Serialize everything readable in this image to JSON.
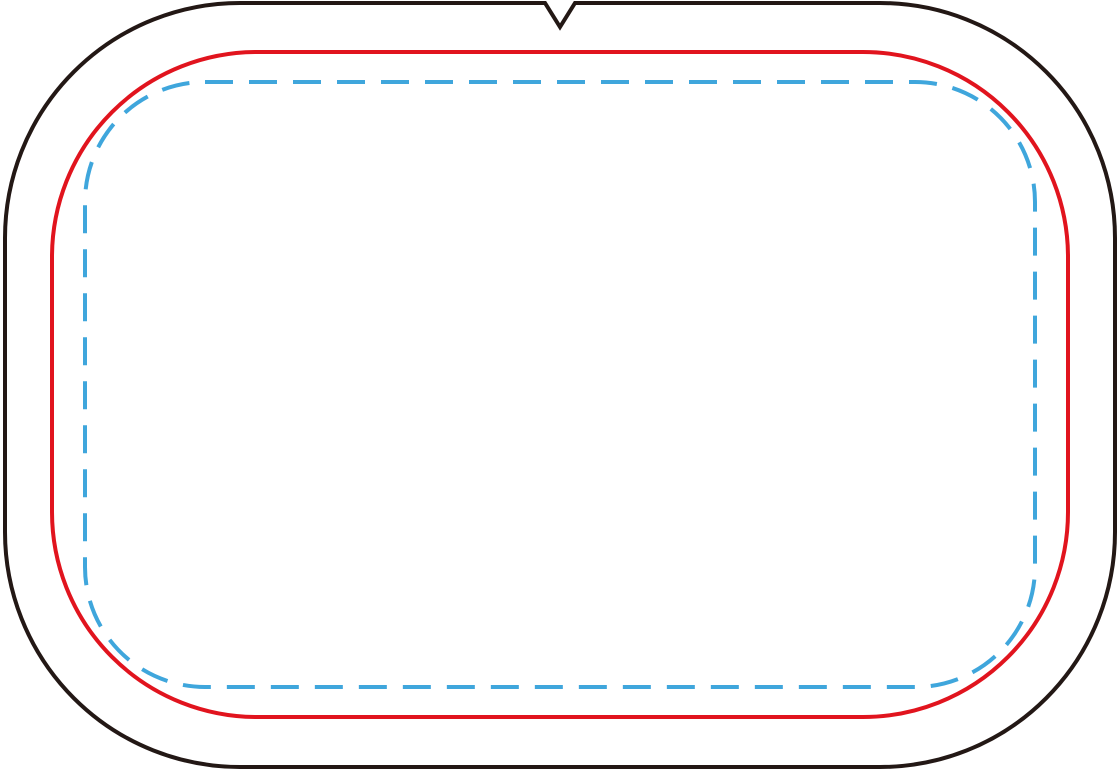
{
  "diagram": {
    "outline_color": "#231815",
    "cut_line_color": "#e1141e",
    "safe_line_color": "#3fa6dc",
    "safe_line_style": "dashed"
  }
}
